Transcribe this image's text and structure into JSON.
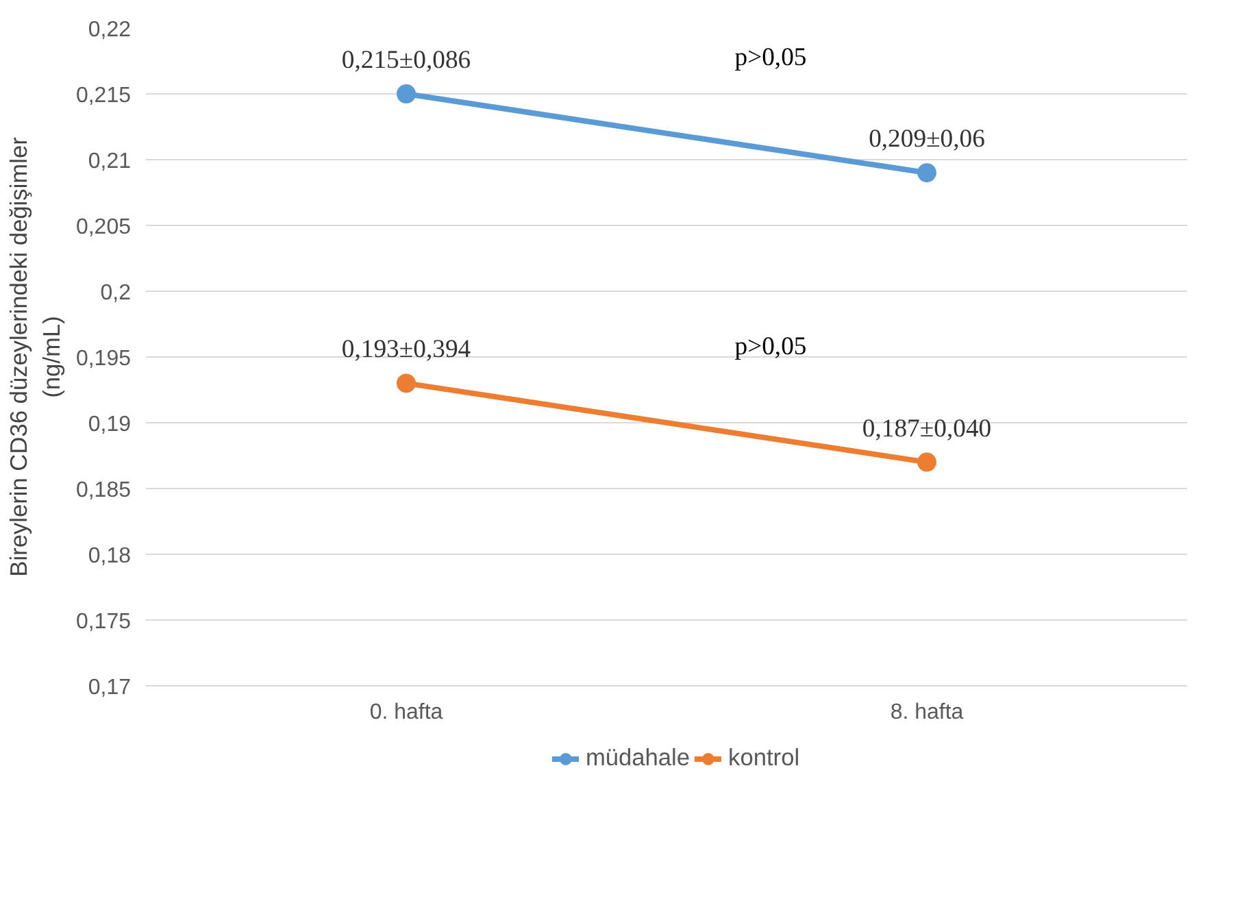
{
  "chart_data": {
    "type": "line",
    "ylabel": "Bireylerin CD36 düzeylerindeki değişimler (ng/mL)",
    "categories": [
      "0. hafta",
      "8. hafta"
    ],
    "series": [
      {
        "name": "müdahale",
        "color": "#5b9bd5",
        "values": [
          0.215,
          0.209
        ],
        "value_labels": [
          "0,215±0,086",
          "0,209±0,06"
        ]
      },
      {
        "name": "kontrol",
        "color": "#ed7d31",
        "values": [
          0.193,
          0.187
        ],
        "value_labels": [
          "0,193±0,394",
          "0,187±0,040"
        ]
      }
    ],
    "annotations": [
      "p>0,05",
      "p>0,05"
    ],
    "ylim": [
      0.17,
      0.22
    ],
    "yticks": [
      {
        "value": 0.17,
        "label": "0,17"
      },
      {
        "value": 0.175,
        "label": "0,175"
      },
      {
        "value": 0.18,
        "label": "0,18"
      },
      {
        "value": 0.185,
        "label": "0,185"
      },
      {
        "value": 0.19,
        "label": "0,19"
      },
      {
        "value": 0.195,
        "label": "0,195"
      },
      {
        "value": 0.2,
        "label": "0,2"
      },
      {
        "value": 0.205,
        "label": "0,205"
      },
      {
        "value": 0.21,
        "label": "0,21"
      },
      {
        "value": 0.215,
        "label": "0,215"
      },
      {
        "value": 0.22,
        "label": "0,22"
      }
    ],
    "grid": "y",
    "legend": "bottom",
    "marker": "circle",
    "line_style": "solid"
  }
}
